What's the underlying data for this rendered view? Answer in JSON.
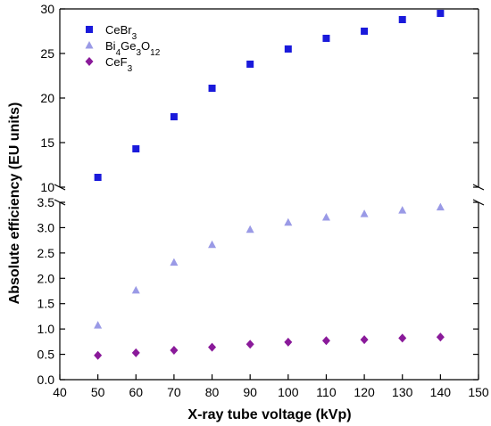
{
  "chart_data": {
    "type": "scatter",
    "xlabel": "X-ray tube voltage (kVp)",
    "ylabel": "Absolute efficiency (EU units)",
    "xlim": [
      40,
      150
    ],
    "xticks": [
      "40",
      "50",
      "60",
      "70",
      "80",
      "90",
      "100",
      "110",
      "120",
      "130",
      "140",
      "150"
    ],
    "y_broken_axis": true,
    "y_upper": {
      "ylim": [
        10,
        30
      ],
      "ticks": [
        "10",
        "15",
        "20",
        "25",
        "30"
      ]
    },
    "y_lower": {
      "ylim": [
        0.0,
        3.5
      ],
      "ticks": [
        "0.0",
        "0.5",
        "1.0",
        "1.5",
        "2.0",
        "2.5",
        "3.0",
        "3.5"
      ]
    },
    "legend_position": "top-left",
    "series": [
      {
        "name": "CeBr3",
        "label_base": "CeBr",
        "label_sub": "3",
        "marker": "square",
        "color": "#1a1adb",
        "panel": "upper",
        "x": [
          50,
          60,
          70,
          80,
          90,
          100,
          110,
          120,
          130,
          140
        ],
        "y": [
          11.1,
          14.3,
          17.9,
          21.1,
          23.8,
          25.5,
          26.7,
          27.5,
          28.8,
          29.5
        ]
      },
      {
        "name": "Bi4Ge3O12",
        "label_parts": [
          "Bi",
          "4",
          "Ge",
          "3",
          "O",
          "12"
        ],
        "marker": "triangle",
        "color": "#9a9ae6",
        "panel": "lower",
        "x": [
          50,
          60,
          70,
          80,
          90,
          100,
          110,
          120,
          130,
          140
        ],
        "y": [
          1.07,
          1.76,
          2.31,
          2.66,
          2.96,
          3.1,
          3.2,
          3.27,
          3.34,
          3.4
        ]
      },
      {
        "name": "CeF3",
        "label_base": "CeF",
        "label_sub": "3",
        "marker": "diamond",
        "color": "#8a1a9a",
        "panel": "lower",
        "x": [
          50,
          60,
          70,
          80,
          90,
          100,
          110,
          120,
          130,
          140
        ],
        "y": [
          0.48,
          0.53,
          0.58,
          0.64,
          0.7,
          0.74,
          0.77,
          0.79,
          0.82,
          0.84
        ]
      }
    ]
  }
}
